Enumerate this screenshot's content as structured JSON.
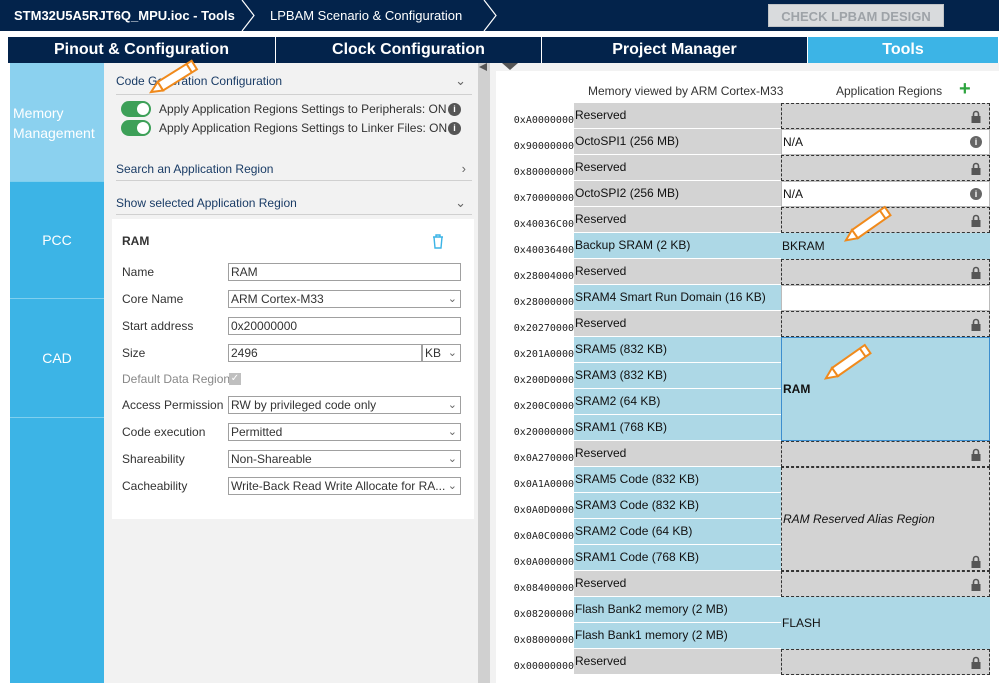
{
  "header": {
    "file_title": "STM32U5A5RJT6Q_MPU.ioc - Tools",
    "breadcrumb": "LPBAM Scenario & Configuration",
    "check_button": "CHECK LPBAM DESIGN"
  },
  "tabs": [
    "Pinout & Configuration",
    "Clock Configuration",
    "Project Manager",
    "Tools"
  ],
  "sidebar": {
    "items": [
      "Memory Management",
      "PCC",
      "CAD"
    ]
  },
  "left": {
    "code_gen": "Code Generation Configuration",
    "toggle1": "Apply Application Regions Settings to Peripherals: ON",
    "toggle2": "Apply Application Regions Settings to Linker Files: ON",
    "search": "Search an Application Region",
    "show": "Show selected Application Region",
    "region_title": "RAM",
    "fields": {
      "name_label": "Name",
      "name": "RAM",
      "core_label": "Core Name",
      "core": "ARM Cortex-M33",
      "start_label": "Start address",
      "start": "0x20000000",
      "size_label": "Size",
      "size": "2496",
      "size_unit": "KB",
      "default_label": "Default Data Region",
      "access_label": "Access Permission",
      "access": "RW by privileged code only",
      "exec_label": "Code execution",
      "exec": "Permitted",
      "share_label": "Shareability",
      "share": "Non-Shareable",
      "cache_label": "Cacheability",
      "cache": "Write-Back Read Write Allocate for RA..."
    }
  },
  "map": {
    "header_left": "Memory viewed by ARM Cortex-M33",
    "header_right": "Application Regions",
    "rows": [
      {
        "addr": "0xA0000000",
        "label": "Reserved"
      },
      {
        "addr": "0x90000000",
        "label": "OctoSPI1 (256 MB)"
      },
      {
        "addr": "0x80000000",
        "label": "Reserved"
      },
      {
        "addr": "0x70000000",
        "label": "OctoSPI2 (256 MB)"
      },
      {
        "addr": "0x40036C00",
        "label": "Reserved"
      },
      {
        "addr": "0x40036400",
        "label": "Backup SRAM (2 KB)"
      },
      {
        "addr": "0x28004000",
        "label": "Reserved"
      },
      {
        "addr": "0x28000000",
        "label": "SRAM4 Smart Run Domain (16 KB)"
      },
      {
        "addr": "0x20270000",
        "label": "Reserved"
      },
      {
        "addr": "0x201A0000",
        "label": "SRAM5 (832 KB)"
      },
      {
        "addr": "0x200D0000",
        "label": "SRAM3 (832 KB)"
      },
      {
        "addr": "0x200C0000",
        "label": "SRAM2 (64 KB)"
      },
      {
        "addr": "0x20000000",
        "label": "SRAM1 (768 KB)"
      },
      {
        "addr": "0x0A270000",
        "label": "Reserved"
      },
      {
        "addr": "0x0A1A0000",
        "label": "SRAM5 Code (832 KB)"
      },
      {
        "addr": "0x0A0D0000",
        "label": "SRAM3 Code (832 KB)"
      },
      {
        "addr": "0x0A0C0000",
        "label": "SRAM2 Code (64 KB)"
      },
      {
        "addr": "0x0A000000",
        "label": "SRAM1 Code (768 KB)"
      },
      {
        "addr": "0x08400000",
        "label": "Reserved"
      },
      {
        "addr": "0x08200000",
        "label": "Flash Bank2 memory (2 MB)"
      },
      {
        "addr": "0x08000000",
        "label": "Flash Bank1 memory (2 MB)"
      },
      {
        "addr": "0x00000000",
        "label": "Reserved"
      }
    ],
    "apps": {
      "octo1": "N/A",
      "octo2": "N/A",
      "bkram": "BKRAM",
      "ram": "RAM",
      "alias": "RAM Reserved Alias Region",
      "flash": "FLASH"
    }
  }
}
